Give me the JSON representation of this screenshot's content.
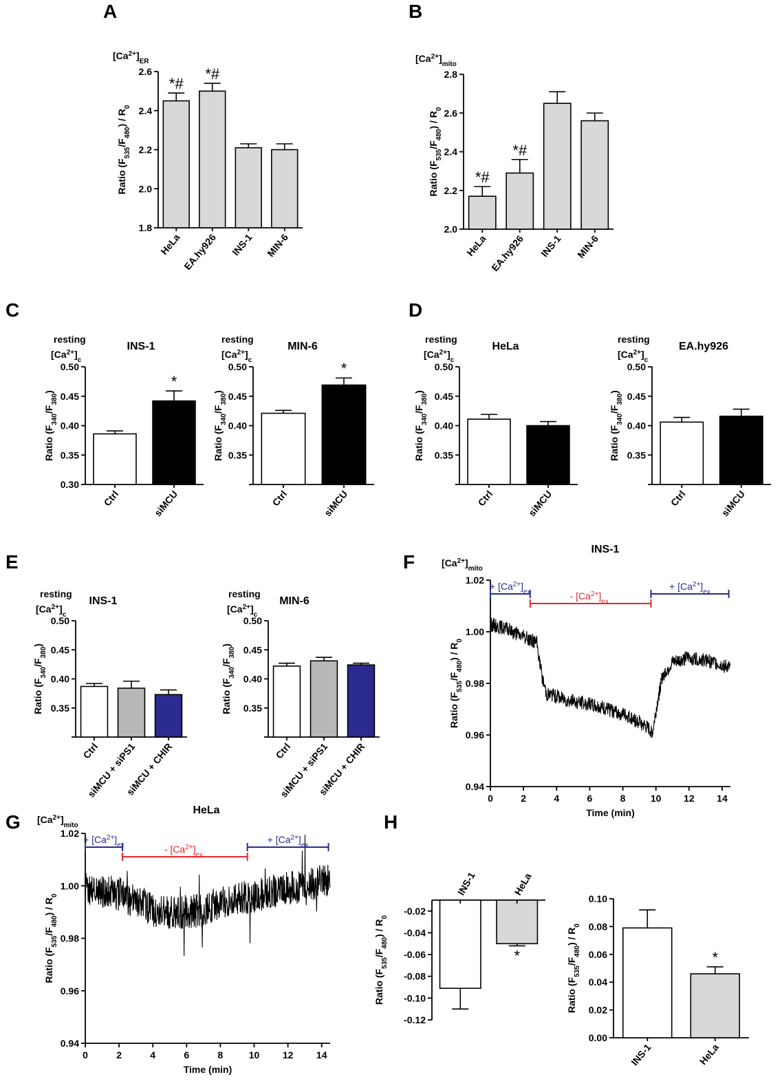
{
  "figure_labels": [
    "A",
    "B",
    "C",
    "D",
    "E",
    "F",
    "G",
    "H"
  ],
  "colors": {
    "white": "#ffffff",
    "gray": "#d8d8d8",
    "gray_dark": "#b8b8b8",
    "black": "#000000",
    "blue": "#2b2a8e",
    "red": "#e0262d"
  },
  "chart_data": [
    {
      "panel": "A",
      "type": "bar",
      "ylabel_top": "[Ca2+]ER",
      "ylabel": "Ratio (F535/F480) / R0",
      "categories": [
        "HeLa",
        "EA.hy926",
        "INS-1",
        "MIN-6"
      ],
      "values": [
        2.45,
        2.5,
        2.21,
        2.2
      ],
      "errors": [
        0.04,
        0.04,
        0.02,
        0.03
      ],
      "annotations": [
        "*#",
        "*#",
        "",
        ""
      ],
      "ylim": [
        1.8,
        2.6
      ],
      "yticks": [
        "1.8",
        "2.0",
        "2.2",
        "2.4",
        "2.6"
      ],
      "bar_colors": [
        "#d8d8d8",
        "#d8d8d8",
        "#d8d8d8",
        "#d8d8d8"
      ]
    },
    {
      "panel": "B",
      "type": "bar",
      "ylabel_top": "[Ca2+]mito",
      "ylabel": "Ratio (F535/F480) / R0",
      "categories": [
        "HeLa",
        "EA.hy926",
        "INS-1",
        "MIN-6"
      ],
      "values": [
        2.17,
        2.29,
        2.65,
        2.56
      ],
      "errors": [
        0.05,
        0.07,
        0.06,
        0.04
      ],
      "annotations": [
        "*#",
        "*#",
        "",
        ""
      ],
      "ylim": [
        2.0,
        2.8
      ],
      "yticks": [
        "2.0",
        "2.2",
        "2.4",
        "2.6",
        "2.8"
      ],
      "bar_colors": [
        "#d8d8d8",
        "#d8d8d8",
        "#d8d8d8",
        "#d8d8d8"
      ]
    },
    {
      "panel": "C",
      "type": "bar",
      "title": "INS-1",
      "ylabel_top_1": "resting",
      "ylabel_top_2": "[Ca2+]c",
      "ylabel": "Ratio (F340/F380)",
      "categories": [
        "Ctrl",
        "siMCU"
      ],
      "values": [
        0.386,
        0.442
      ],
      "errors": [
        0.005,
        0.017
      ],
      "annotations": [
        "",
        "*"
      ],
      "ylim": [
        0.3,
        0.5
      ],
      "yticks": [
        "0.30",
        "0.35",
        "0.40",
        "0.45",
        "0.50"
      ],
      "bar_colors": [
        "#ffffff",
        "#000000"
      ]
    },
    {
      "panel": "C",
      "type": "bar",
      "title": "MIN-6",
      "ylabel_top_1": "resting",
      "ylabel_top_2": "[Ca2+]c",
      "ylabel": "Ratio (F340/F380)",
      "categories": [
        "Ctrl",
        "siMCU"
      ],
      "values": [
        0.421,
        0.469
      ],
      "errors": [
        0.005,
        0.012
      ],
      "annotations": [
        "",
        "*"
      ],
      "ylim": [
        0.3,
        0.5
      ],
      "yticks": [
        "",
        "0.35",
        "0.40",
        "0.45",
        "0.50"
      ],
      "bar_colors": [
        "#ffffff",
        "#000000"
      ]
    },
    {
      "panel": "D",
      "type": "bar",
      "title": "HeLa",
      "ylabel_top_1": "resting",
      "ylabel_top_2": "[Ca2+]c",
      "ylabel": "Ratio (F340/F380)",
      "categories": [
        "Ctrl",
        "siMCU"
      ],
      "values": [
        0.411,
        0.4
      ],
      "errors": [
        0.008,
        0.007
      ],
      "annotations": [
        "",
        ""
      ],
      "ylim": [
        0.3,
        0.5
      ],
      "yticks": [
        "",
        "0.35",
        "0.40",
        "0.45",
        "0.50"
      ],
      "bar_colors": [
        "#ffffff",
        "#000000"
      ]
    },
    {
      "panel": "D",
      "type": "bar",
      "title": "EA.hy926",
      "ylabel_top_1": "resting",
      "ylabel_top_2": "[Ca2+]c",
      "ylabel": "Ratio (F340/F380)",
      "categories": [
        "Ctrl",
        "siMCU"
      ],
      "values": [
        0.406,
        0.416
      ],
      "errors": [
        0.008,
        0.012
      ],
      "annotations": [
        "",
        ""
      ],
      "ylim": [
        0.3,
        0.5
      ],
      "yticks": [
        "",
        "0.35",
        "0.40",
        "0.45",
        "0.50"
      ],
      "bar_colors": [
        "#ffffff",
        "#000000"
      ]
    },
    {
      "panel": "E",
      "type": "bar",
      "title": "INS-1",
      "ylabel_top_1": "resting",
      "ylabel_top_2": "[Ca2+]c",
      "ylabel": "Ratio (F340/F380)",
      "categories": [
        "Ctrl",
        "siMCU + siPS1",
        "siMCU + CHIR"
      ],
      "values": [
        0.387,
        0.384,
        0.373
      ],
      "errors": [
        0.005,
        0.012,
        0.008
      ],
      "annotations": [
        "",
        "",
        ""
      ],
      "ylim": [
        0.3,
        0.5
      ],
      "yticks": [
        "",
        "0.35",
        "0.40",
        "0.45",
        "0.50"
      ],
      "bar_colors": [
        "#ffffff",
        "#b8b8b8",
        "#2b2a8e"
      ]
    },
    {
      "panel": "E",
      "type": "bar",
      "title": "MIN-6",
      "ylabel_top_1": "resting",
      "ylabel_top_2": "[Ca2+]c",
      "ylabel": "Ratio (F340/F380)",
      "categories": [
        "Ctrl",
        "siMCU + siPS1",
        "siMCU + CHIR"
      ],
      "values": [
        0.422,
        0.431,
        0.424
      ],
      "errors": [
        0.005,
        0.006,
        0.003
      ],
      "annotations": [
        "",
        "",
        ""
      ],
      "ylim": [
        0.3,
        0.5
      ],
      "yticks": [
        "",
        "0.35",
        "0.40",
        "0.45",
        "0.50"
      ],
      "bar_colors": [
        "#ffffff",
        "#b8b8b8",
        "#2b2a8e"
      ]
    },
    {
      "panel": "F",
      "type": "line",
      "title": "INS-1",
      "ylabel_top": "[Ca2+]mito",
      "ylabel": "Ratio (F535/F480) / R0",
      "xlabel": "Time (min)",
      "xlim": [
        0,
        14.5
      ],
      "ylim": [
        0.94,
        1.02
      ],
      "xticks": [
        "0",
        "2",
        "4",
        "6",
        "8",
        "10",
        "12",
        "14"
      ],
      "yticks": [
        "0.94",
        "0.96",
        "0.98",
        "1.00",
        "1.02"
      ],
      "series": [
        {
          "x": [
            0,
            1,
            2,
            2.8,
            3.1,
            3.4,
            4,
            5,
            6,
            7,
            8,
            9,
            9.8,
            10.1,
            10.4,
            11,
            12,
            13,
            14,
            14.5
          ],
          "y": [
            1.003,
            1.001,
            0.998,
            0.996,
            0.983,
            0.976,
            0.975,
            0.973,
            0.972,
            0.97,
            0.968,
            0.965,
            0.961,
            0.973,
            0.983,
            0.988,
            0.99,
            0.989,
            0.987,
            0.986
          ]
        }
      ],
      "annotations": [
        {
          "text": "+ [Ca2+]ex",
          "x_start": 0,
          "x_end": 2.4,
          "color": "#2b2a8e"
        },
        {
          "text": "- [Ca2+]ex",
          "x_start": 2.4,
          "x_end": 9.7,
          "color": "#e0262d"
        },
        {
          "text": "+ [Ca2+]ex",
          "x_start": 9.7,
          "x_end": 14.4,
          "color": "#2b2a8e"
        }
      ]
    },
    {
      "panel": "G",
      "type": "line",
      "title": "HeLa",
      "ylabel_top": "[Ca2+]mito",
      "ylabel": "Ratio (F535/F480) / R0",
      "xlabel": "Time (min)",
      "xlim": [
        0,
        14.5
      ],
      "ylim": [
        0.94,
        1.02
      ],
      "xticks": [
        "0",
        "2",
        "4",
        "6",
        "8",
        "10",
        "12",
        "14"
      ],
      "yticks": [
        "0.94",
        "0.96",
        "0.98",
        "1.00",
        "1.02"
      ],
      "series": [
        {
          "x": [
            0,
            1,
            2,
            3,
            4,
            5,
            6,
            7,
            8,
            9,
            10,
            11,
            12,
            13,
            14,
            14.5
          ],
          "y": [
            0.999,
            0.998,
            0.997,
            0.994,
            0.991,
            0.99,
            0.99,
            0.991,
            0.994,
            0.995,
            0.996,
            0.998,
            0.999,
            1.0,
            1.002,
            1.002
          ]
        }
      ],
      "annotations": [
        {
          "text": "+ [Ca2+]ex",
          "x_start": 0,
          "x_end": 2.2,
          "color": "#2b2a8e"
        },
        {
          "text": "- [Ca2+]ex",
          "x_start": 2.2,
          "x_end": 9.6,
          "color": "#e0262d"
        },
        {
          "text": "+ [Ca2+]ex",
          "x_start": 9.6,
          "x_end": 14.4,
          "color": "#2b2a8e"
        }
      ]
    },
    {
      "panel": "H",
      "type": "bar",
      "ylabel": "Ratio (F535/F480) / R0",
      "categories": [
        "INS-1",
        "HeLa"
      ],
      "values": [
        -0.091,
        -0.05
      ],
      "errors": [
        0.019,
        0.002
      ],
      "annotations": [
        "",
        "*"
      ],
      "ylim": [
        -0.12,
        -0.01
      ],
      "yticks": [
        "-0.12",
        "-0.10",
        "-0.08",
        "-0.06",
        "-0.04",
        "-0.02"
      ],
      "bar_colors": [
        "#ffffff",
        "#d8d8d8"
      ]
    },
    {
      "panel": "H",
      "type": "bar",
      "ylabel": "Ratio (F535/F480) / R0",
      "categories": [
        "INS-1",
        "HeLa"
      ],
      "values": [
        0.079,
        0.046
      ],
      "errors": [
        0.013,
        0.005
      ],
      "annotations": [
        "",
        "*"
      ],
      "ylim": [
        0.0,
        0.1
      ],
      "yticks": [
        "0.00",
        "0.02",
        "0.04",
        "0.06",
        "0.08",
        "0.10"
      ],
      "bar_colors": [
        "#ffffff",
        "#d8d8d8"
      ]
    }
  ]
}
